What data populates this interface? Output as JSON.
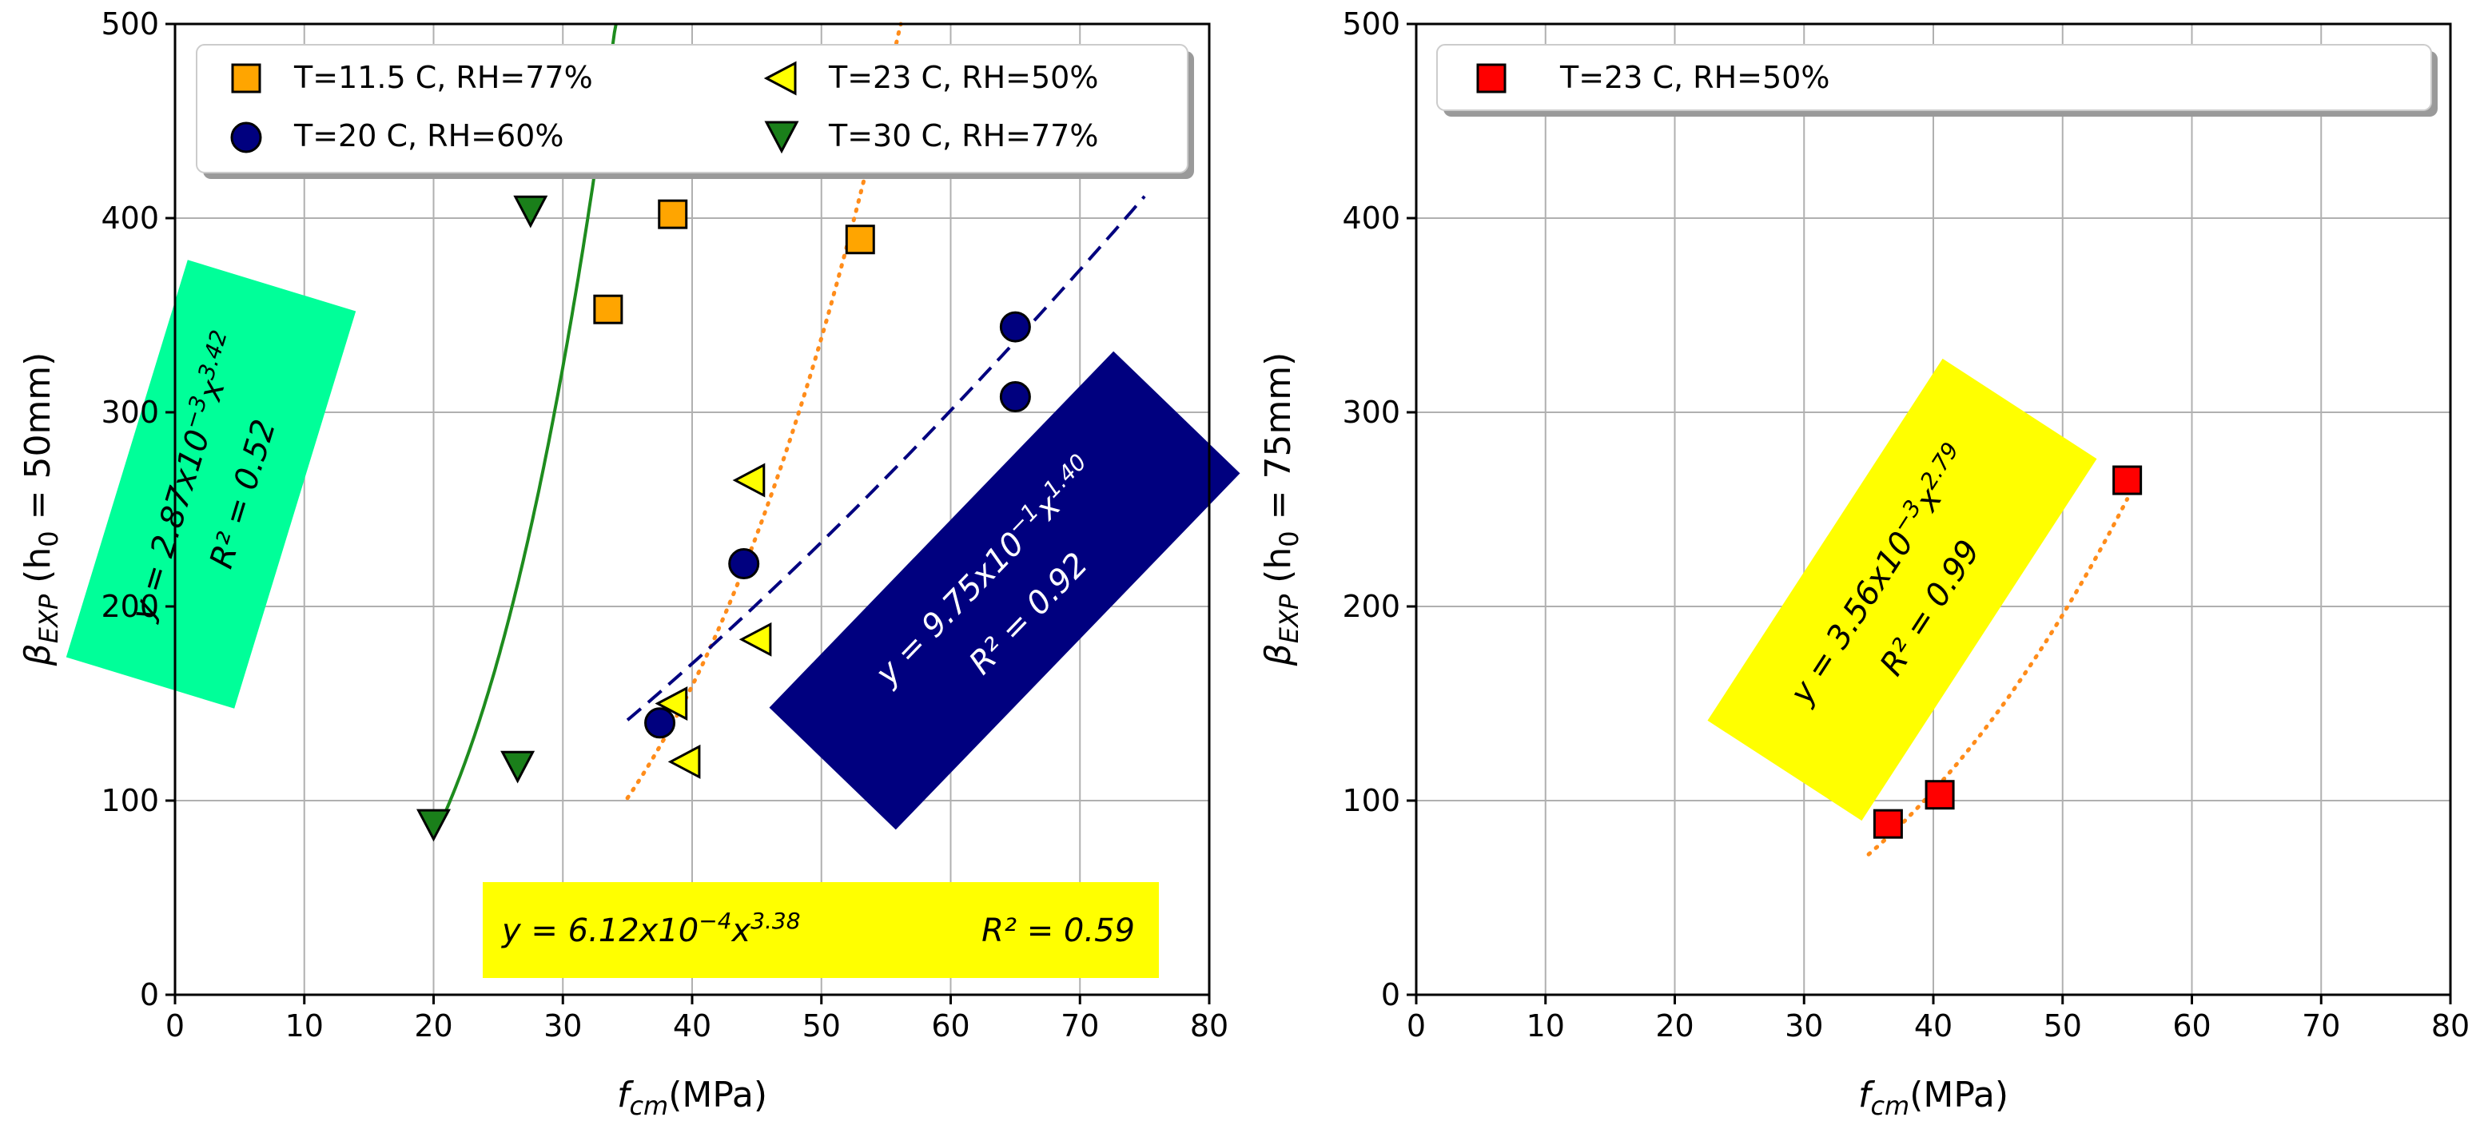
{
  "chart_data": [
    {
      "type": "scatter",
      "xlabel_main": "f",
      "xlabel_sub": "cm",
      "xlabel_unit": "(MPa)",
      "ylabel_beta": "β",
      "ylabel_sub": "EXP",
      "ylabel_rest": "(h",
      "ylabel_h0sub": "0",
      "ylabel_eq": "= 50mm)",
      "xlim": [
        0,
        80
      ],
      "ylim": [
        0,
        500
      ],
      "xticks": [
        "0",
        "10",
        "20",
        "30",
        "40",
        "50",
        "60",
        "70",
        "80"
      ],
      "yticks": [
        "0",
        "100",
        "200",
        "300",
        "400",
        "500"
      ],
      "grid": true,
      "legend_position": "top",
      "series": [
        {
          "name": "T=11.5 C, RH=77%",
          "marker": "square",
          "color": "#FFA500",
          "x": [
            33.5,
            38.5,
            53
          ],
          "y": [
            353,
            402,
            389
          ]
        },
        {
          "name": "T=20 C, RH=60%",
          "marker": "circle",
          "color": "#00007F",
          "x": [
            37.5,
            44,
            65,
            65
          ],
          "y": [
            140,
            222,
            344,
            308
          ]
        },
        {
          "name": "T=23 C, RH=50%",
          "marker": "triangle-left",
          "color": "#FFFF00",
          "x": [
            38.5,
            39.5,
            44.5,
            45
          ],
          "y": [
            150,
            120,
            265,
            183
          ]
        },
        {
          "name": "T=30 C, RH=77%",
          "marker": "triangle-down",
          "color": "#1A7F1A",
          "x": [
            20,
            26.5,
            27.5
          ],
          "y": [
            88,
            118,
            404
          ]
        }
      ],
      "fits": [
        {
          "color": "#1E8C1E",
          "style": "solid",
          "a": 0.00287,
          "b": 3.42,
          "x_range": [
            20,
            34.6
          ]
        },
        {
          "color": "#FF8C1A",
          "style": "dotted",
          "a": 0.000612,
          "b": 3.38,
          "x_range": [
            35,
            56.5
          ]
        },
        {
          "color": "#00007F",
          "style": "dashed",
          "a": 0.975,
          "b": 1.4,
          "x_range": [
            35,
            75
          ]
        }
      ],
      "annotations": [
        {
          "bg": "#00FF99",
          "fg": "#000000",
          "eq_prefix": "y = 2.87x10",
          "eq_exp1": "−3",
          "eq_mid": "x",
          "eq_exp2": "3.42",
          "r2": "R² = 0.52"
        },
        {
          "bg": "#00007F",
          "fg": "#FFFFFF",
          "eq_prefix": "y = 9.75x10",
          "eq_exp1": "−1",
          "eq_mid": "x",
          "eq_exp2": "1.40",
          "r2": "R² = 0.92"
        },
        {
          "bg": "#FFFF00",
          "fg": "#000000",
          "eq_prefix": "y = 6.12x10",
          "eq_exp1": "−4",
          "eq_mid": "x",
          "eq_exp2": "3.38",
          "r2": "R² = 0.59"
        }
      ]
    },
    {
      "type": "scatter",
      "xlabel_main": "f",
      "xlabel_sub": "cm",
      "xlabel_unit": "(MPa)",
      "ylabel_beta": "β",
      "ylabel_sub": "EXP",
      "ylabel_rest": "(h",
      "ylabel_h0sub": "0",
      "ylabel_eq": "= 75mm)",
      "xlim": [
        0,
        80
      ],
      "ylim": [
        0,
        500
      ],
      "xticks": [
        "0",
        "10",
        "20",
        "30",
        "40",
        "50",
        "60",
        "70",
        "80"
      ],
      "yticks": [
        "0",
        "100",
        "200",
        "300",
        "400",
        "500"
      ],
      "grid": true,
      "legend_position": "top-left",
      "series": [
        {
          "name": "T=23 C, RH=50%",
          "marker": "square",
          "color": "#FF0000",
          "x": [
            36.5,
            40.5,
            55
          ],
          "y": [
            88,
            103,
            265
          ]
        }
      ],
      "fits": [
        {
          "color": "#FF8C1A",
          "style": "dotted",
          "a": 0.00356,
          "b": 2.79,
          "x_range": [
            35,
            55
          ]
        }
      ],
      "annotations": [
        {
          "bg": "#FFFF00",
          "fg": "#000000",
          "eq_prefix": "y = 3.56x10",
          "eq_exp1": "−3",
          "eq_mid": "x",
          "eq_exp2": "2.79",
          "r2": "R² = 0.99"
        }
      ]
    }
  ]
}
